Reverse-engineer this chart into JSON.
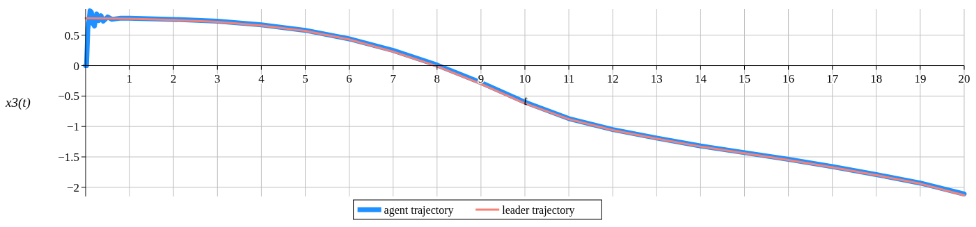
{
  "chart_data": {
    "type": "line",
    "ylabel": "x3(t)",
    "xlabel": "t",
    "xlim": [
      0,
      20
    ],
    "ylim": [
      -2.15,
      0.93
    ],
    "xticks": [
      1,
      2,
      3,
      4,
      5,
      6,
      7,
      8,
      9,
      10,
      11,
      12,
      13,
      14,
      15,
      16,
      17,
      18,
      19,
      20
    ],
    "yticks": [
      {
        "value": -2,
        "label": "−2"
      },
      {
        "value": -1.5,
        "label": "−1.5"
      },
      {
        "value": -1,
        "label": "−1"
      },
      {
        "value": -0.5,
        "label": "−0.5"
      },
      0,
      0.5
    ],
    "grid": true,
    "legend": "bottom",
    "series": [
      {
        "name": "agent trajectory",
        "color": "#1e90ff",
        "x": [
          0,
          0.02,
          0.05,
          0.08,
          0.1,
          0.13,
          0.16,
          0.2,
          0.25,
          0.3,
          0.35,
          0.4,
          0.5,
          0.6,
          0.8,
          1,
          2,
          3,
          4,
          5,
          6,
          7,
          8,
          9,
          10,
          11,
          12,
          13,
          14,
          15,
          16,
          17,
          18,
          19,
          20
        ],
        "values": [
          0,
          0,
          0.6,
          0.75,
          0.9,
          0.88,
          0.7,
          0.65,
          0.85,
          0.74,
          0.82,
          0.73,
          0.8,
          0.76,
          0.78,
          0.78,
          0.76,
          0.73,
          0.67,
          0.58,
          0.44,
          0.25,
          0.01,
          -0.28,
          -0.6,
          -0.87,
          -1.05,
          -1.19,
          -1.32,
          -1.43,
          -1.54,
          -1.66,
          -1.79,
          -1.93,
          -2.11
        ]
      },
      {
        "name": "leader trajectory",
        "color": "#fa8072",
        "x": [
          0,
          1,
          2,
          3,
          4,
          5,
          6,
          7,
          8,
          9,
          10,
          11,
          12,
          13,
          14,
          15,
          16,
          17,
          18,
          19,
          20
        ],
        "values": [
          0.78,
          0.77,
          0.75,
          0.72,
          0.66,
          0.57,
          0.43,
          0.23,
          -0.01,
          -0.3,
          -0.62,
          -0.88,
          -1.06,
          -1.2,
          -1.33,
          -1.44,
          -1.55,
          -1.67,
          -1.8,
          -1.94,
          -2.13
        ]
      }
    ]
  }
}
